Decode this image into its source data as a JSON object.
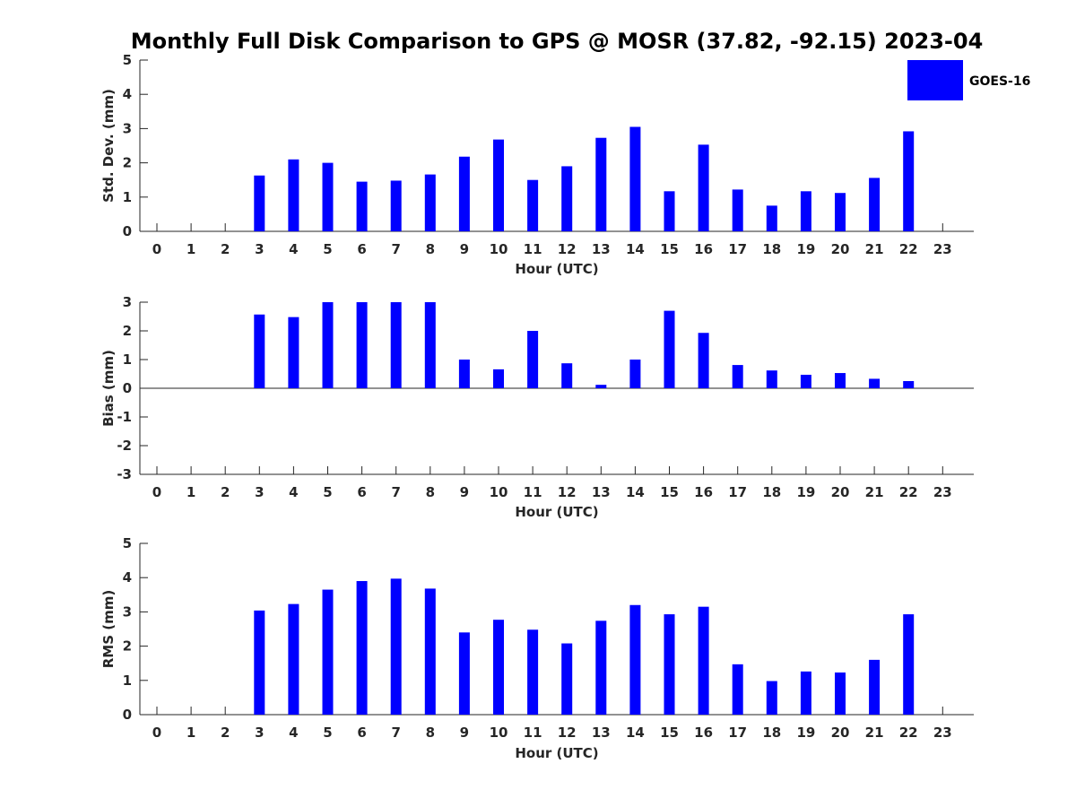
{
  "title": "Monthly Full Disk Comparison to GPS @ MOSR (37.82, -92.15) 2023-04",
  "legend": {
    "label": "GOES-16",
    "color": "#0000ff"
  },
  "chart_data": [
    {
      "type": "bar",
      "name": "stddev",
      "ylabel": "Std. Dev. (mm)",
      "xlabel": "Hour (UTC)",
      "ylim": [
        0,
        5
      ],
      "yticks": [
        "0",
        "1",
        "2",
        "3",
        "4",
        "5"
      ],
      "categories": [
        "0",
        "1",
        "2",
        "3",
        "4",
        "5",
        "6",
        "7",
        "8",
        "9",
        "10",
        "11",
        "12",
        "13",
        "14",
        "15",
        "16",
        "17",
        "18",
        "19",
        "20",
        "21",
        "22",
        "23"
      ],
      "series": [
        {
          "name": "GOES-16",
          "values": [
            null,
            null,
            null,
            1.63,
            2.1,
            2.0,
            1.45,
            1.48,
            1.66,
            2.18,
            2.68,
            1.5,
            1.9,
            2.73,
            3.05,
            1.17,
            2.53,
            1.22,
            0.75,
            1.17,
            1.12,
            1.56,
            2.92,
            null
          ]
        }
      ]
    },
    {
      "type": "bar",
      "name": "bias",
      "ylabel": "Bias (mm)",
      "xlabel": "Hour (UTC)",
      "ylim": [
        -3,
        3
      ],
      "yticks": [
        "-3",
        "-2",
        "-1",
        "0",
        "1",
        "2",
        "3"
      ],
      "categories": [
        "0",
        "1",
        "2",
        "3",
        "4",
        "5",
        "6",
        "7",
        "8",
        "9",
        "10",
        "11",
        "12",
        "13",
        "14",
        "15",
        "16",
        "17",
        "18",
        "19",
        "20",
        "21",
        "22",
        "23"
      ],
      "series": [
        {
          "name": "GOES-16",
          "values": [
            null,
            null,
            null,
            2.57,
            2.48,
            3.0,
            3.0,
            3.0,
            3.0,
            1.0,
            0.66,
            2.0,
            0.87,
            0.12,
            1.0,
            2.7,
            1.93,
            0.81,
            0.62,
            0.47,
            0.53,
            0.33,
            0.25,
            null
          ]
        }
      ]
    },
    {
      "type": "bar",
      "name": "rms",
      "ylabel": "RMS (mm)",
      "xlabel": "Hour (UTC)",
      "ylim": [
        0,
        5
      ],
      "yticks": [
        "0",
        "1",
        "2",
        "3",
        "4",
        "5"
      ],
      "categories": [
        "0",
        "1",
        "2",
        "3",
        "4",
        "5",
        "6",
        "7",
        "8",
        "9",
        "10",
        "11",
        "12",
        "13",
        "14",
        "15",
        "16",
        "17",
        "18",
        "19",
        "20",
        "21",
        "22",
        "23"
      ],
      "series": [
        {
          "name": "GOES-16",
          "values": [
            null,
            null,
            null,
            3.04,
            3.23,
            3.65,
            3.9,
            3.97,
            3.68,
            2.4,
            2.77,
            2.48,
            2.08,
            2.74,
            3.2,
            2.93,
            3.15,
            1.47,
            0.98,
            1.26,
            1.23,
            1.6,
            2.93,
            null
          ]
        }
      ]
    }
  ]
}
